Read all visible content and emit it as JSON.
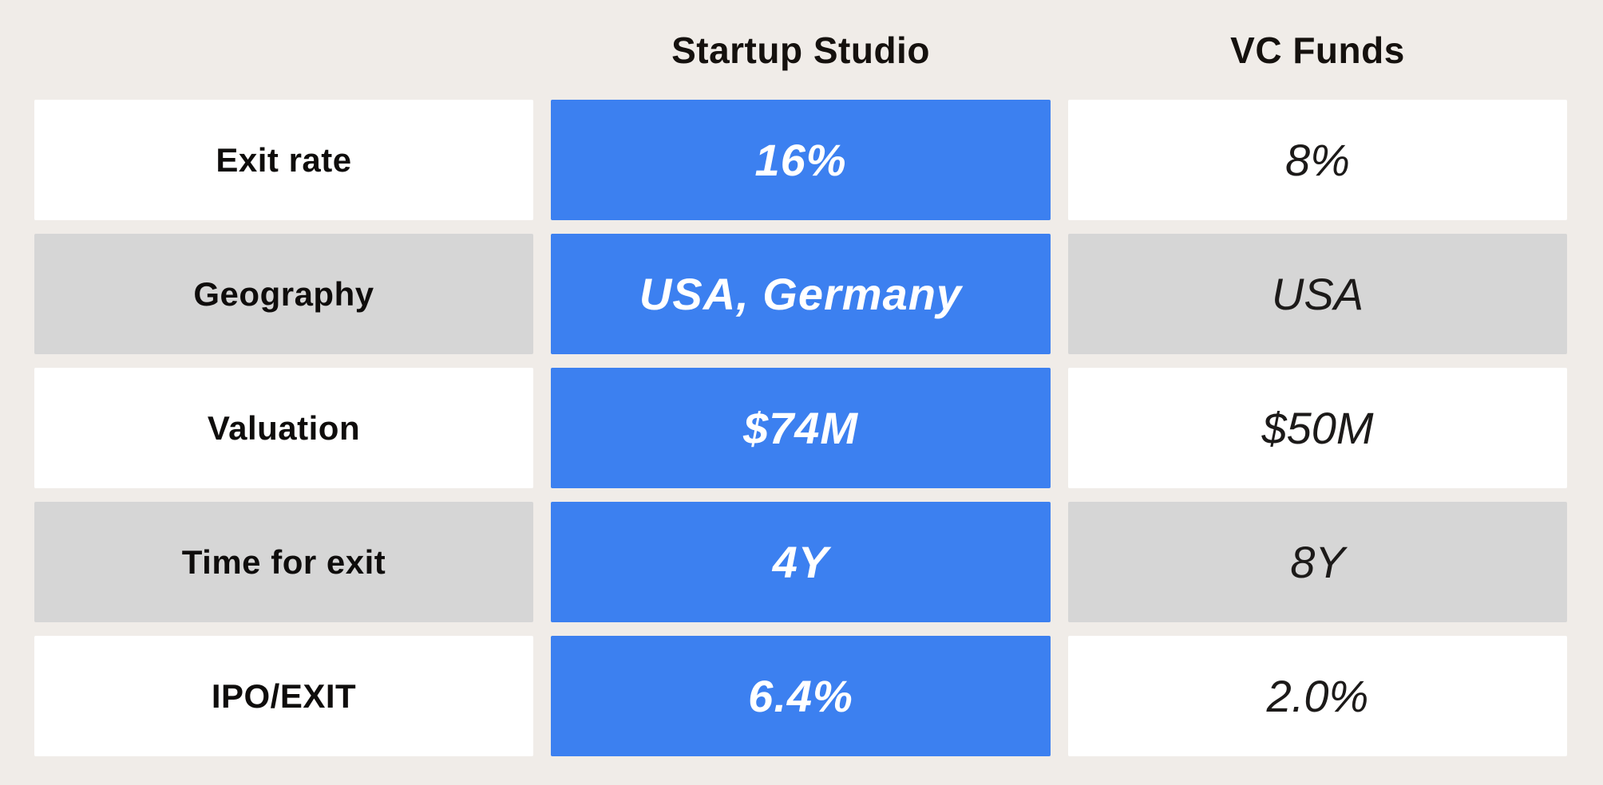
{
  "colors": {
    "background": "#F0ECE8",
    "accent_blue": "#3C80F0",
    "row_white": "#FFFFFF",
    "row_gray": "#D6D6D6",
    "text_dark": "#15110e",
    "text_on_accent": "#FFFFFF"
  },
  "header": {
    "startup_studio": "Startup Studio",
    "vc_funds": "VC Funds"
  },
  "table": {
    "rows": [
      {
        "label": "Exit rate",
        "studio": "16%",
        "vc": "8%"
      },
      {
        "label": "Geography",
        "studio": "USA, Germany",
        "vc": "USA"
      },
      {
        "label": "Valuation",
        "studio": "$74M",
        "vc": "$50M"
      },
      {
        "label": "Time for exit",
        "studio": "4Y",
        "vc": "8Y"
      },
      {
        "label": "IPO/EXIT",
        "studio": "6.4%",
        "vc": "2.0%"
      }
    ]
  },
  "chart_data": {
    "type": "table",
    "title": "",
    "columns": [
      "",
      "Startup Studio",
      "VC Funds"
    ],
    "rows": [
      [
        "Exit rate",
        "16%",
        "8%"
      ],
      [
        "Geography",
        "USA, Germany",
        "USA"
      ],
      [
        "Valuation",
        "$74M",
        "$50M"
      ],
      [
        "Time for exit",
        "4Y",
        "8Y"
      ],
      [
        "IPO/EXIT",
        "6.4%",
        "2.0%"
      ]
    ],
    "layout_hints": {
      "highlighted_column": "Startup Studio",
      "highlight_color": "#3C80F0",
      "alternating_row_shades": [
        "#FFFFFF",
        "#D6D6D6"
      ]
    }
  }
}
